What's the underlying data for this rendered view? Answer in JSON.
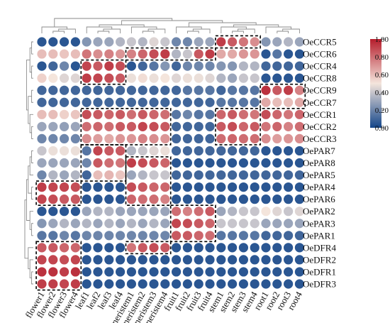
{
  "chart_data": {
    "type": "heatmap",
    "title": "",
    "rows": [
      "OeCCR5",
      "OeCCR6",
      "OeCCR4",
      "OeCCR8",
      "OeCCR9",
      "OeCCR7",
      "OeCCR1",
      "OeCCR2",
      "OeCCR3",
      "OePAR7",
      "OePAR8",
      "OePAR5",
      "OePAR4",
      "OePAR6",
      "OePAR2",
      "OePAR3",
      "OePAR1",
      "OeDFR4",
      "OeDFR2",
      "OeDFR1",
      "OeDFR3"
    ],
    "columns": [
      "flower1",
      "flower2",
      "flower3",
      "flower4",
      "leaf1",
      "leaf2",
      "leaf3",
      "leaf4",
      "meristem1",
      "meristem2",
      "meristem3",
      "meristem4",
      "fruit1",
      "fruit2",
      "fruit3",
      "fruit4",
      "stem1",
      "stem2",
      "stem3",
      "stem4",
      "root1",
      "root2",
      "root3",
      "root4"
    ],
    "values": [
      [
        0.05,
        0.05,
        0.05,
        0.05,
        0.25,
        0.3,
        0.3,
        0.35,
        0.4,
        0.35,
        0.45,
        0.4,
        0.2,
        0.2,
        0.3,
        0.3,
        0.92,
        0.85,
        0.78,
        0.72,
        0.25,
        0.3,
        0.35,
        0.3
      ],
      [
        0.6,
        0.6,
        0.58,
        0.6,
        0.78,
        0.72,
        0.75,
        0.7,
        0.75,
        0.82,
        0.88,
        0.92,
        0.35,
        0.4,
        0.85,
        0.92,
        0.65,
        0.65,
        0.7,
        0.7,
        0.05,
        0.15,
        0.05,
        0.05
      ],
      [
        0.05,
        0.1,
        0.2,
        0.05,
        0.9,
        0.85,
        0.92,
        0.88,
        0.05,
        0.1,
        0.15,
        0.25,
        0.1,
        0.2,
        0.2,
        0.2,
        0.25,
        0.25,
        0.35,
        0.35,
        0.1,
        0.1,
        0.1,
        0.1
      ],
      [
        0.55,
        0.5,
        0.45,
        0.45,
        0.92,
        0.9,
        0.88,
        0.85,
        0.48,
        0.52,
        0.48,
        0.5,
        0.45,
        0.48,
        0.48,
        0.45,
        0.35,
        0.3,
        0.4,
        0.4,
        0.05,
        0.05,
        0.05,
        0.05
      ],
      [
        0.1,
        0.1,
        0.1,
        0.1,
        0.1,
        0.1,
        0.1,
        0.1,
        0.1,
        0.1,
        0.1,
        0.1,
        0.1,
        0.15,
        0.15,
        0.15,
        0.1,
        0.15,
        0.15,
        0.15,
        0.95,
        0.85,
        0.92,
        0.75
      ],
      [
        0.1,
        0.1,
        0.1,
        0.1,
        0.1,
        0.1,
        0.1,
        0.1,
        0.1,
        0.1,
        0.1,
        0.1,
        0.1,
        0.1,
        0.1,
        0.1,
        0.15,
        0.15,
        0.15,
        0.15,
        0.65,
        0.6,
        0.6,
        0.65
      ],
      [
        0.6,
        0.6,
        0.55,
        0.58,
        0.88,
        0.85,
        0.82,
        0.85,
        0.8,
        0.85,
        0.82,
        0.8,
        0.15,
        0.2,
        0.15,
        0.15,
        0.82,
        0.85,
        0.8,
        0.78,
        0.88,
        0.82,
        0.78,
        0.82
      ],
      [
        0.3,
        0.3,
        0.28,
        0.3,
        0.8,
        0.82,
        0.8,
        0.85,
        0.85,
        0.9,
        0.88,
        0.85,
        0.1,
        0.1,
        0.1,
        0.1,
        0.85,
        0.88,
        0.82,
        0.85,
        0.78,
        0.82,
        0.75,
        0.8
      ],
      [
        0.2,
        0.2,
        0.2,
        0.2,
        0.72,
        0.68,
        0.65,
        0.7,
        0.7,
        0.75,
        0.72,
        0.7,
        0.1,
        0.1,
        0.1,
        0.1,
        0.8,
        0.82,
        0.8,
        0.8,
        0.72,
        0.68,
        0.7,
        0.72
      ],
      [
        0.4,
        0.48,
        0.48,
        0.48,
        0.15,
        0.9,
        0.85,
        0.85,
        0.35,
        0.4,
        0.45,
        0.48,
        0.1,
        0.1,
        0.1,
        0.1,
        0.1,
        0.1,
        0.1,
        0.1,
        0.05,
        0.05,
        0.05,
        0.05
      ],
      [
        0.3,
        0.3,
        0.3,
        0.3,
        0.2,
        0.85,
        0.8,
        0.78,
        0.92,
        0.88,
        0.85,
        0.82,
        0.05,
        0.05,
        0.05,
        0.05,
        0.05,
        0.05,
        0.05,
        0.05,
        0.05,
        0.05,
        0.05,
        0.05
      ],
      [
        0.2,
        0.35,
        0.3,
        0.35,
        0.1,
        0.6,
        0.62,
        0.58,
        0.3,
        0.35,
        0.4,
        0.4,
        0.1,
        0.1,
        0.1,
        0.1,
        0.1,
        0.1,
        0.1,
        0.1,
        0.1,
        0.1,
        0.1,
        0.1
      ],
      [
        0.92,
        0.9,
        0.9,
        0.88,
        0.05,
        0.05,
        0.05,
        0.05,
        0.88,
        0.85,
        0.82,
        0.82,
        0.05,
        0.05,
        0.05,
        0.05,
        0.05,
        0.05,
        0.05,
        0.05,
        0.05,
        0.05,
        0.05,
        0.05
      ],
      [
        0.9,
        0.88,
        0.85,
        0.85,
        0.05,
        0.05,
        0.05,
        0.05,
        0.82,
        0.8,
        0.8,
        0.75,
        0.05,
        0.05,
        0.05,
        0.05,
        0.05,
        0.05,
        0.05,
        0.05,
        0.05,
        0.05,
        0.05,
        0.05
      ],
      [
        0.05,
        0.05,
        0.05,
        0.05,
        0.3,
        0.35,
        0.35,
        0.3,
        0.3,
        0.3,
        0.3,
        0.3,
        0.8,
        0.75,
        0.8,
        0.85,
        0.3,
        0.35,
        0.4,
        0.4,
        0.5,
        0.45,
        0.4,
        0.45
      ],
      [
        0.25,
        0.3,
        0.35,
        0.3,
        0.35,
        0.3,
        0.35,
        0.3,
        0.35,
        0.3,
        0.35,
        0.3,
        0.9,
        0.88,
        0.85,
        0.82,
        0.4,
        0.4,
        0.4,
        0.4,
        0.3,
        0.3,
        0.3,
        0.3
      ],
      [
        0.15,
        0.15,
        0.2,
        0.15,
        0.2,
        0.2,
        0.2,
        0.2,
        0.2,
        0.2,
        0.2,
        0.2,
        0.85,
        0.85,
        0.82,
        0.8,
        0.15,
        0.15,
        0.15,
        0.15,
        0.1,
        0.1,
        0.1,
        0.1
      ],
      [
        0.85,
        0.85,
        0.82,
        0.82,
        0.05,
        0.05,
        0.05,
        0.05,
        0.78,
        0.85,
        0.88,
        0.85,
        0.05,
        0.05,
        0.05,
        0.05,
        0.05,
        0.05,
        0.05,
        0.05,
        0.05,
        0.05,
        0.05,
        0.05
      ],
      [
        0.9,
        0.9,
        0.88,
        0.9,
        0.05,
        0.05,
        0.05,
        0.05,
        0.05,
        0.05,
        0.05,
        0.05,
        0.05,
        0.05,
        0.05,
        0.05,
        0.05,
        0.05,
        0.05,
        0.05,
        0.05,
        0.05,
        0.05,
        0.05
      ],
      [
        0.95,
        0.95,
        0.92,
        0.95,
        0.05,
        0.05,
        0.05,
        0.05,
        0.05,
        0.05,
        0.05,
        0.05,
        0.05,
        0.05,
        0.05,
        0.05,
        0.05,
        0.05,
        0.05,
        0.05,
        0.05,
        0.05,
        0.05,
        0.05
      ],
      [
        0.92,
        0.92,
        0.9,
        0.92,
        0.05,
        0.05,
        0.05,
        0.05,
        0.05,
        0.05,
        0.05,
        0.05,
        0.05,
        0.05,
        0.05,
        0.05,
        0.05,
        0.05,
        0.05,
        0.05,
        0.05,
        0.05,
        0.05,
        0.05
      ]
    ],
    "colorbar": {
      "ticks": [
        "0.00",
        "0.20",
        "0.40",
        "0.60",
        "0.80",
        "1.00"
      ],
      "range": [
        0,
        1
      ],
      "low_color": "#14468a",
      "mid_color": "#f4e5dc",
      "high_color": "#b51d2c"
    },
    "highlight_boxes": [
      {
        "row_start": 0,
        "row_end": 0,
        "col_start": 16,
        "col_end": 19
      },
      {
        "row_start": 1,
        "row_end": 1,
        "col_start": 8,
        "col_end": 15
      },
      {
        "row_start": 2,
        "row_end": 3,
        "col_start": 4,
        "col_end": 7
      },
      {
        "row_start": 4,
        "row_end": 5,
        "col_start": 20,
        "col_end": 23
      },
      {
        "row_start": 6,
        "row_end": 8,
        "col_start": 4,
        "col_end": 11
      },
      {
        "row_start": 6,
        "row_end": 8,
        "col_start": 16,
        "col_end": 19
      },
      {
        "row_start": 9,
        "row_end": 11,
        "col_start": 4,
        "col_end": 7
      },
      {
        "row_start": 10,
        "row_end": 13,
        "col_start": 8,
        "col_end": 11
      },
      {
        "row_start": 12,
        "row_end": 13,
        "col_start": 0,
        "col_end": 3
      },
      {
        "row_start": 14,
        "row_end": 16,
        "col_start": 12,
        "col_end": 15
      },
      {
        "row_start": 17,
        "row_end": 17,
        "col_start": 8,
        "col_end": 11
      },
      {
        "row_start": 17,
        "row_end": 20,
        "col_start": 0,
        "col_end": 3
      }
    ],
    "row_dendrogram_joins": [
      [
        4,
        5
      ],
      [
        7,
        8
      ],
      [
        6,
        22
      ],
      [
        21,
        23
      ],
      [
        15,
        16
      ],
      [
        14,
        25
      ],
      [
        2,
        3
      ],
      [
        0,
        1
      ],
      [
        28,
        27
      ],
      [
        29,
        24
      ],
      [
        12,
        13
      ],
      [
        9,
        10
      ],
      [
        32,
        11
      ],
      [
        33,
        31
      ],
      [
        26,
        34
      ],
      [
        19,
        20
      ],
      [
        36,
        18
      ],
      [
        37,
        17
      ],
      [
        35,
        38
      ]
    ],
    "column_dendrogram_joins": [
      [
        1,
        2
      ],
      [
        24,
        3
      ],
      [
        0,
        25
      ],
      [
        5,
        6
      ],
      [
        27,
        7
      ],
      [
        4,
        28
      ],
      [
        9,
        10
      ],
      [
        30,
        11
      ],
      [
        8,
        31
      ],
      [
        29,
        32
      ],
      [
        13,
        14
      ],
      [
        34,
        15
      ],
      [
        12,
        35
      ],
      [
        17,
        18
      ],
      [
        37,
        19
      ],
      [
        16,
        38
      ],
      [
        21,
        22
      ],
      [
        40,
        23
      ],
      [
        20,
        41
      ],
      [
        39,
        42
      ],
      [
        36,
        43
      ],
      [
        33,
        44
      ],
      [
        26,
        45
      ]
    ]
  }
}
